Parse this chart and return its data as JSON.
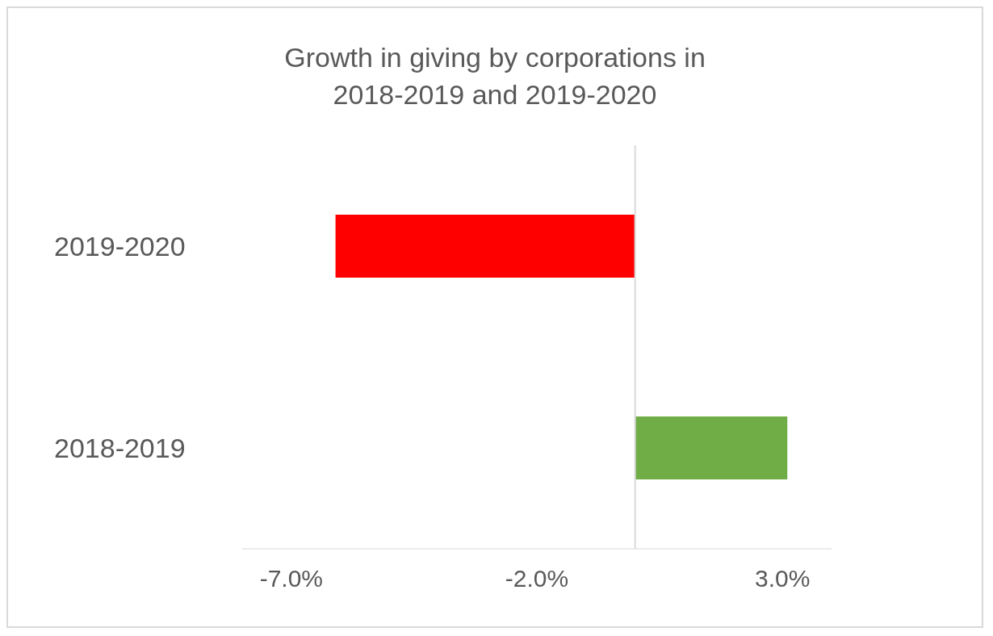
{
  "chart_data": {
    "type": "bar",
    "orientation": "horizontal",
    "title": "Growth in giving by corporations in 2018-2019 and 2019-2020",
    "categories": [
      "2019-2020",
      "2018-2019"
    ],
    "values": [
      -6.1,
      3.1
    ],
    "colors": [
      "#ff0000",
      "#70ad47"
    ],
    "xlim": [
      -8,
      4
    ],
    "xticks": [
      {
        "value": -7,
        "label": "-7.0%"
      },
      {
        "value": -2,
        "label": "-2.0%"
      },
      {
        "value": 3,
        "label": "3.0%"
      }
    ],
    "grid": false
  }
}
